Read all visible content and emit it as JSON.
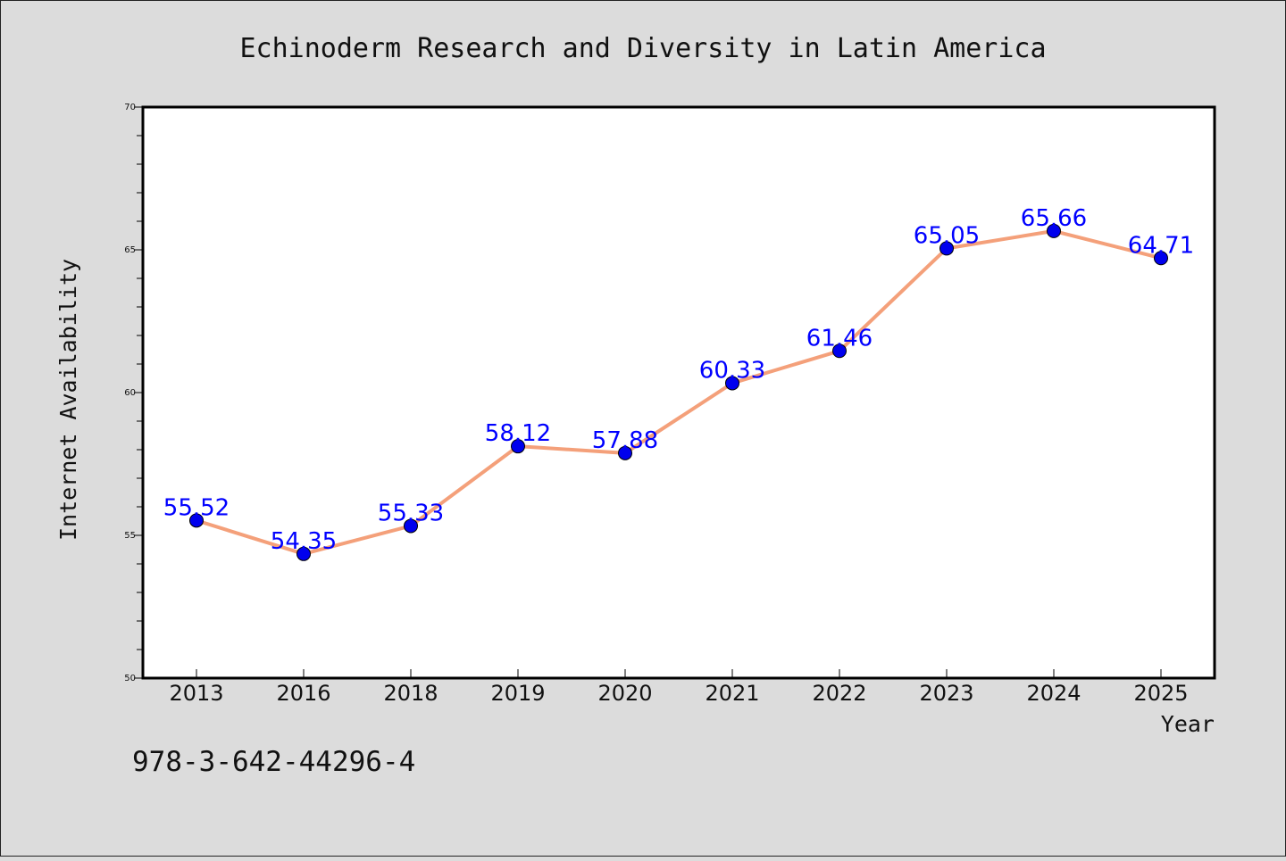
{
  "chart_data": {
    "type": "line",
    "title": "Echinoderm Research and Diversity in Latin America",
    "xlabel": "Year",
    "ylabel": "Internet Availability",
    "categories": [
      "2013",
      "2016",
      "2018",
      "2019",
      "2020",
      "2021",
      "2022",
      "2023",
      "2024",
      "2025"
    ],
    "series": [
      {
        "values": [
          55.52,
          54.35,
          55.33,
          58.12,
          57.88,
          60.33,
          61.46,
          65.05,
          65.66,
          64.71
        ],
        "line_color": "#f4a07a",
        "marker_color": "#0000ee",
        "label_color": "#0000ff"
      }
    ],
    "data_labels": [
      "55.52",
      "54.35",
      "55.33",
      "58.12",
      "57.88",
      "60.33",
      "61.46",
      "65.05",
      "65.66",
      "64.71"
    ],
    "ylim": [
      50,
      70
    ],
    "yticks": [
      "50",
      "55",
      "60",
      "65",
      "70"
    ],
    "grid": false,
    "legend": "none"
  },
  "footnote": "978-3-642-44296-4",
  "colors": {
    "background": "#dcdcdc",
    "plot_background": "#ffffff",
    "text": "#111111"
  }
}
